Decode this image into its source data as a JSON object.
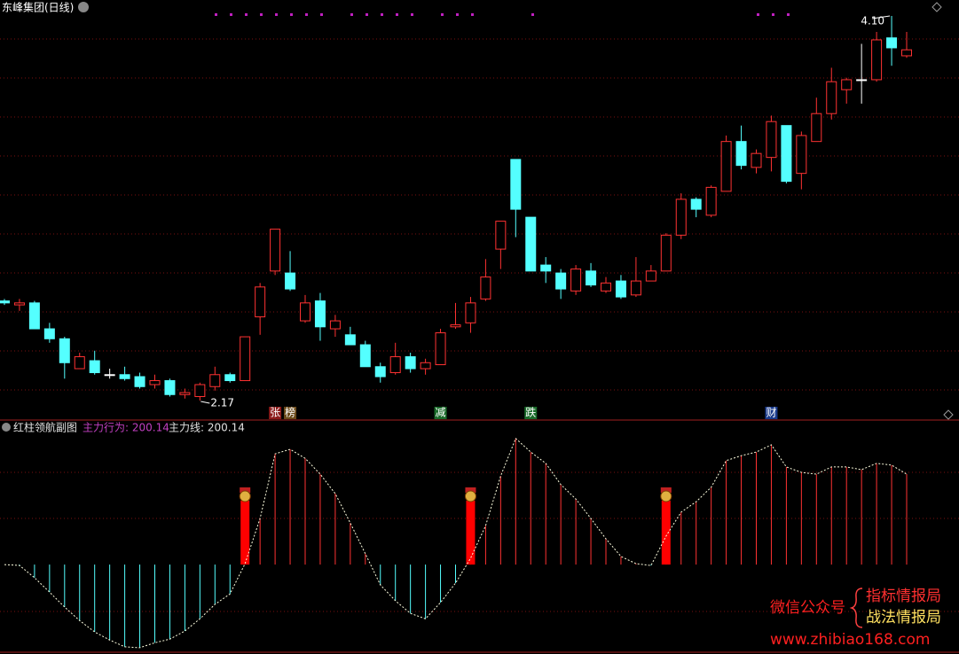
{
  "header": {
    "title": "东峰集团(日线)"
  },
  "chart_data": [
    {
      "type": "candlestick",
      "ylim": [
        2.09,
        4.18
      ],
      "up_color": "#ff3232",
      "down_color": "#54ffff",
      "flat_color": "#ffffff",
      "open": [
        2.67,
        2.65,
        2.66,
        2.53,
        2.48,
        2.33,
        2.37,
        2.3,
        2.3,
        2.29,
        2.25,
        2.27,
        2.2,
        2.19,
        2.24,
        2.3,
        2.27,
        2.59,
        2.82,
        2.81,
        2.57,
        2.67,
        2.53,
        2.5,
        2.45,
        2.34,
        2.31,
        2.39,
        2.33,
        2.35,
        2.54,
        2.56,
        2.68,
        2.93,
        3.38,
        3.09,
        2.85,
        2.81,
        2.72,
        2.82,
        2.72,
        2.77,
        2.7,
        2.77,
        2.82,
        3.0,
        3.18,
        3.1,
        3.22,
        3.47,
        3.34,
        3.39,
        3.55,
        3.31,
        3.47,
        3.61,
        3.73,
        3.78,
        3.78,
        3.99,
        3.9
      ],
      "high": [
        2.68,
        2.68,
        2.67,
        2.56,
        2.49,
        2.41,
        2.42,
        2.33,
        2.34,
        2.31,
        2.3,
        2.28,
        2.23,
        2.26,
        2.34,
        2.31,
        2.49,
        2.76,
        3.03,
        2.92,
        2.7,
        2.71,
        2.6,
        2.54,
        2.47,
        2.36,
        2.46,
        2.41,
        2.38,
        2.53,
        2.66,
        2.69,
        2.88,
        3.07,
        3.38,
        3.09,
        2.89,
        2.83,
        2.85,
        2.86,
        2.79,
        2.8,
        2.89,
        2.85,
        3.01,
        3.21,
        3.19,
        3.25,
        3.5,
        3.55,
        3.43,
        3.6,
        3.55,
        3.52,
        3.69,
        3.84,
        3.79,
        3.96,
        4.02,
        4.1,
        4.02
      ],
      "low": [
        2.65,
        2.62,
        2.53,
        2.46,
        2.28,
        2.33,
        2.3,
        2.28,
        2.27,
        2.23,
        2.23,
        2.19,
        2.18,
        2.17,
        2.22,
        2.26,
        2.27,
        2.5,
        2.8,
        2.72,
        2.56,
        2.47,
        2.49,
        2.45,
        2.34,
        2.26,
        2.3,
        2.31,
        2.3,
        2.35,
        2.53,
        2.51,
        2.67,
        2.83,
        2.99,
        2.82,
        2.76,
        2.68,
        2.7,
        2.74,
        2.71,
        2.68,
        2.69,
        2.77,
        2.82,
        2.98,
        3.09,
        3.09,
        3.22,
        3.33,
        3.31,
        3.32,
        3.26,
        3.23,
        3.47,
        3.58,
        3.66,
        3.66,
        3.77,
        3.85,
        3.89
      ],
      "close": [
        2.66,
        2.66,
        2.53,
        2.48,
        2.36,
        2.39,
        2.31,
        2.3,
        2.28,
        2.24,
        2.27,
        2.2,
        2.21,
        2.25,
        2.3,
        2.27,
        2.49,
        2.74,
        3.03,
        2.73,
        2.66,
        2.54,
        2.57,
        2.45,
        2.34,
        2.29,
        2.39,
        2.33,
        2.36,
        2.51,
        2.55,
        2.66,
        2.79,
        3.07,
        3.13,
        2.82,
        2.82,
        2.73,
        2.83,
        2.75,
        2.76,
        2.69,
        2.77,
        2.82,
        3.0,
        3.18,
        3.13,
        3.24,
        3.47,
        3.35,
        3.41,
        3.57,
        3.27,
        3.5,
        3.61,
        3.77,
        3.78,
        3.78,
        3.98,
        3.94,
        3.93
      ],
      "high_label": "4.10",
      "low_label": "2.17",
      "events": [
        {
          "index": 18,
          "text": "张",
          "color": "#8b1a1a"
        },
        {
          "index": 19,
          "text": "榜",
          "color": "#6b4a1a"
        },
        {
          "index": 29,
          "text": "减",
          "color": "#1a6b2a"
        },
        {
          "index": 35,
          "text": "跌",
          "color": "#1a6b2a"
        },
        {
          "index": 51,
          "text": "财",
          "color": "#1a3a8b"
        }
      ]
    },
    {
      "type": "bar",
      "title": "红柱领航副图",
      "legend": [
        "主力行为: 200.14",
        "主力线: 200.14"
      ],
      "legend_colors": [
        "#c040c0",
        "#e0e0e0"
      ],
      "ylim": [
        -192,
        308
      ],
      "pos_color": "#ff3232",
      "neg_color": "#54ffff",
      "line_color": "#ffffe0",
      "values": [
        0,
        -2,
        -29,
        -61,
        -94,
        -124,
        -149,
        -167,
        -182,
        -184,
        -173,
        -165,
        -147,
        -120,
        -88,
        -65,
        2,
        102,
        245,
        255,
        235,
        200,
        157,
        92,
        24,
        -45,
        -80,
        -108,
        -120,
        -84,
        -41,
        14,
        86,
        196,
        279,
        249,
        224,
        177,
        145,
        102,
        57,
        18,
        2,
        -2,
        63,
        116,
        139,
        171,
        230,
        241,
        249,
        265,
        216,
        204,
        200,
        216,
        216,
        210,
        224,
        220,
        200.14
      ]
    }
  ],
  "watermark": {
    "left": "微信公众号",
    "right_top": "指标情报局",
    "right_bottom": "战法情报局",
    "url": "www.zhibiao168.com"
  }
}
